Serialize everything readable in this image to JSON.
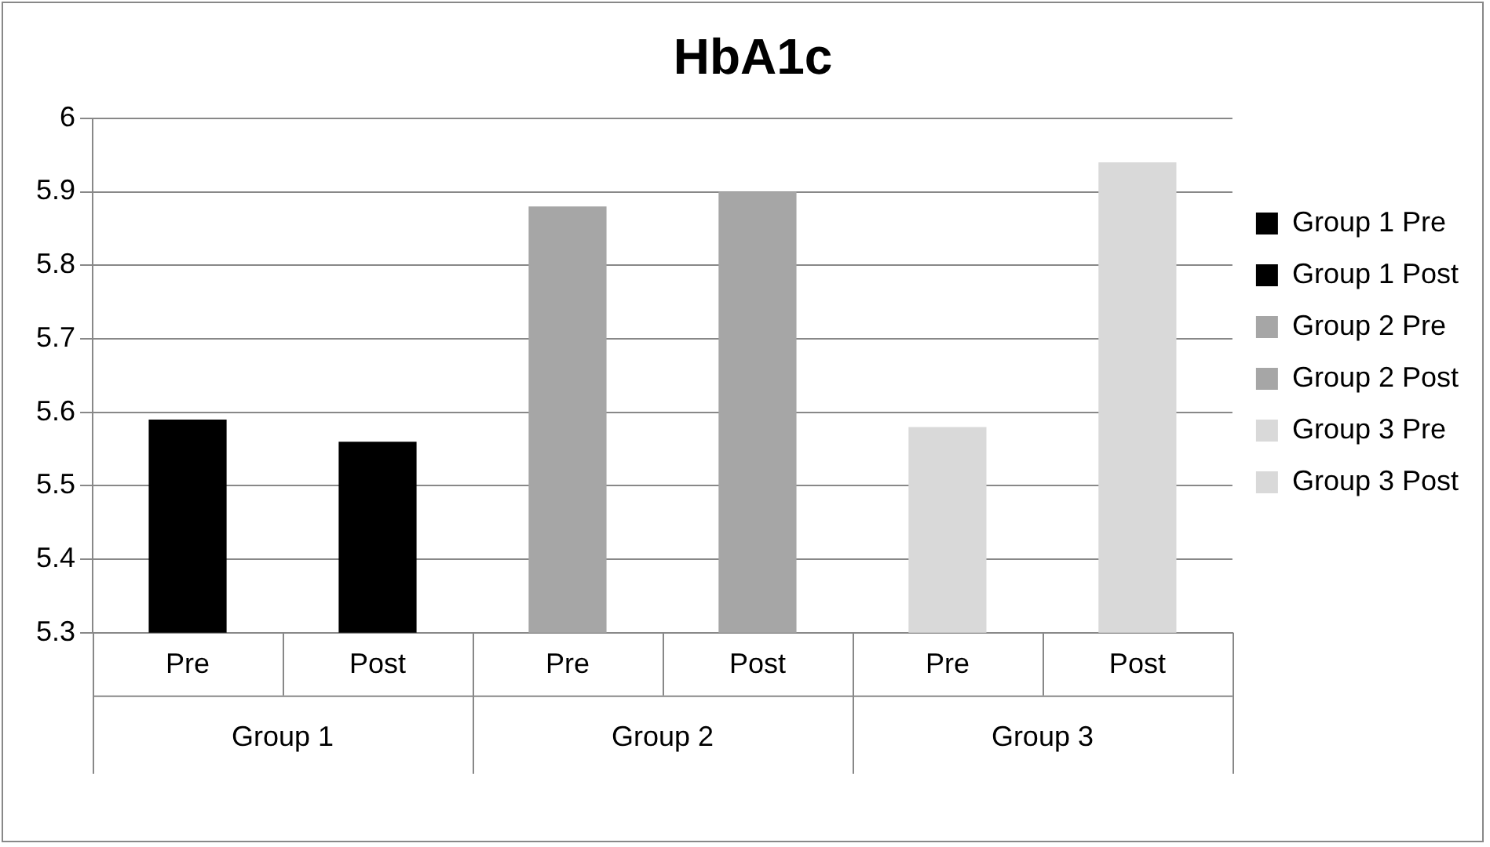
{
  "chart_data": {
    "type": "bar",
    "title": "HbA1c",
    "categories": [
      "Pre",
      "Post",
      "Pre",
      "Post",
      "Pre",
      "Post"
    ],
    "annotations": [
      "Group 1",
      "Group 2",
      "Group 3"
    ],
    "series": [
      {
        "name": "Group 1 Pre",
        "color": "#000000",
        "values": [
          5.59,
          null,
          null,
          null,
          null,
          null
        ]
      },
      {
        "name": "Group 1 Post",
        "color": "#000000",
        "values": [
          null,
          5.56,
          null,
          null,
          null,
          null
        ]
      },
      {
        "name": "Group 2 Pre",
        "color": "#a6a6a6",
        "values": [
          null,
          null,
          5.88,
          null,
          null,
          null
        ]
      },
      {
        "name": "Group 2 Post",
        "color": "#a6a6a6",
        "values": [
          null,
          null,
          null,
          5.9,
          null,
          null
        ]
      },
      {
        "name": "Group 3 Pre",
        "color": "#d9d9d9",
        "values": [
          null,
          null,
          null,
          null,
          5.58,
          null
        ]
      },
      {
        "name": "Group 3 Post",
        "color": "#d9d9d9",
        "values": [
          null,
          null,
          null,
          null,
          null,
          5.94
        ]
      }
    ],
    "ylim": [
      5.3,
      6
    ],
    "yticks": [
      5.3,
      5.4,
      5.5,
      5.6,
      5.7,
      5.8,
      5.9,
      6
    ],
    "grid": "y",
    "legend": "right"
  }
}
